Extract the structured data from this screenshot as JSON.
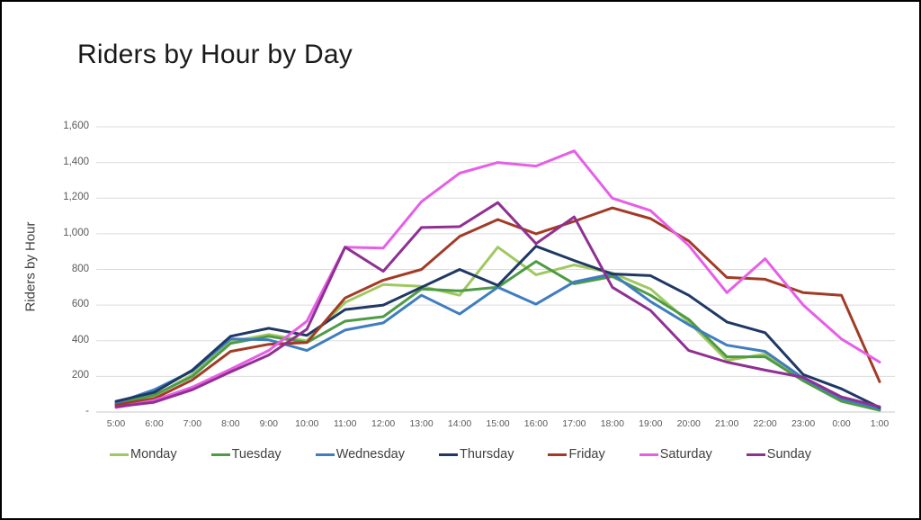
{
  "title": "Riders by Hour by Day",
  "y_axis": {
    "title": "Riders by Hour",
    "ticks": [
      "1,600",
      "1,400",
      "1,200",
      "1,000",
      "800",
      "600",
      "400",
      "200",
      "-"
    ]
  },
  "chart_data": {
    "type": "line",
    "title": "Riders by Hour by Day",
    "xlabel": "",
    "ylabel": "Riders by Hour",
    "ylim": [
      0,
      1600
    ],
    "grid": true,
    "legend_position": "bottom",
    "x": [
      "5:00",
      "6:00",
      "7:00",
      "8:00",
      "9:00",
      "10:00",
      "11:00",
      "12:00",
      "13:00",
      "14:00",
      "15:00",
      "16:00",
      "17:00",
      "18:00",
      "19:00",
      "20:00",
      "21:00",
      "22:00",
      "23:00",
      "0:00",
      "1:00"
    ],
    "series": [
      {
        "name": "Monday",
        "color": "#A0C860",
        "values": [
          45,
          90,
          210,
          395,
          435,
          400,
          615,
          715,
          705,
          655,
          925,
          770,
          825,
          780,
          690,
          505,
          290,
          325,
          180,
          65,
          15
        ]
      },
      {
        "name": "Tuesday",
        "color": "#4E9B45",
        "values": [
          45,
          95,
          200,
          385,
          425,
          390,
          510,
          535,
          690,
          680,
          700,
          845,
          720,
          760,
          655,
          520,
          310,
          310,
          175,
          60,
          10
        ]
      },
      {
        "name": "Wednesday",
        "color": "#3F7DC0",
        "values": [
          50,
          125,
          230,
          410,
          405,
          345,
          460,
          500,
          655,
          550,
          700,
          605,
          730,
          775,
          620,
          490,
          375,
          340,
          190,
          75,
          20
        ]
      },
      {
        "name": "Thursday",
        "color": "#1F3864",
        "values": [
          60,
          110,
          235,
          425,
          470,
          430,
          575,
          600,
          700,
          800,
          710,
          930,
          850,
          775,
          765,
          655,
          505,
          445,
          210,
          130,
          25
        ]
      },
      {
        "name": "Friday",
        "color": "#A23B26",
        "values": [
          40,
          75,
          180,
          340,
          380,
          390,
          640,
          740,
          800,
          985,
          1080,
          1000,
          1070,
          1145,
          1085,
          960,
          755,
          745,
          670,
          655,
          170
        ]
      },
      {
        "name": "Saturday",
        "color": "#E75EE7",
        "values": [
          25,
          65,
          140,
          240,
          345,
          510,
          925,
          920,
          1180,
          1340,
          1400,
          1380,
          1465,
          1200,
          1130,
          935,
          670,
          860,
          600,
          410,
          280
        ]
      },
      {
        "name": "Sunday",
        "color": "#8F3092",
        "values": [
          30,
          55,
          125,
          225,
          320,
          465,
          925,
          790,
          1035,
          1040,
          1175,
          945,
          1095,
          700,
          570,
          345,
          280,
          235,
          195,
          85,
          30
        ]
      }
    ]
  }
}
